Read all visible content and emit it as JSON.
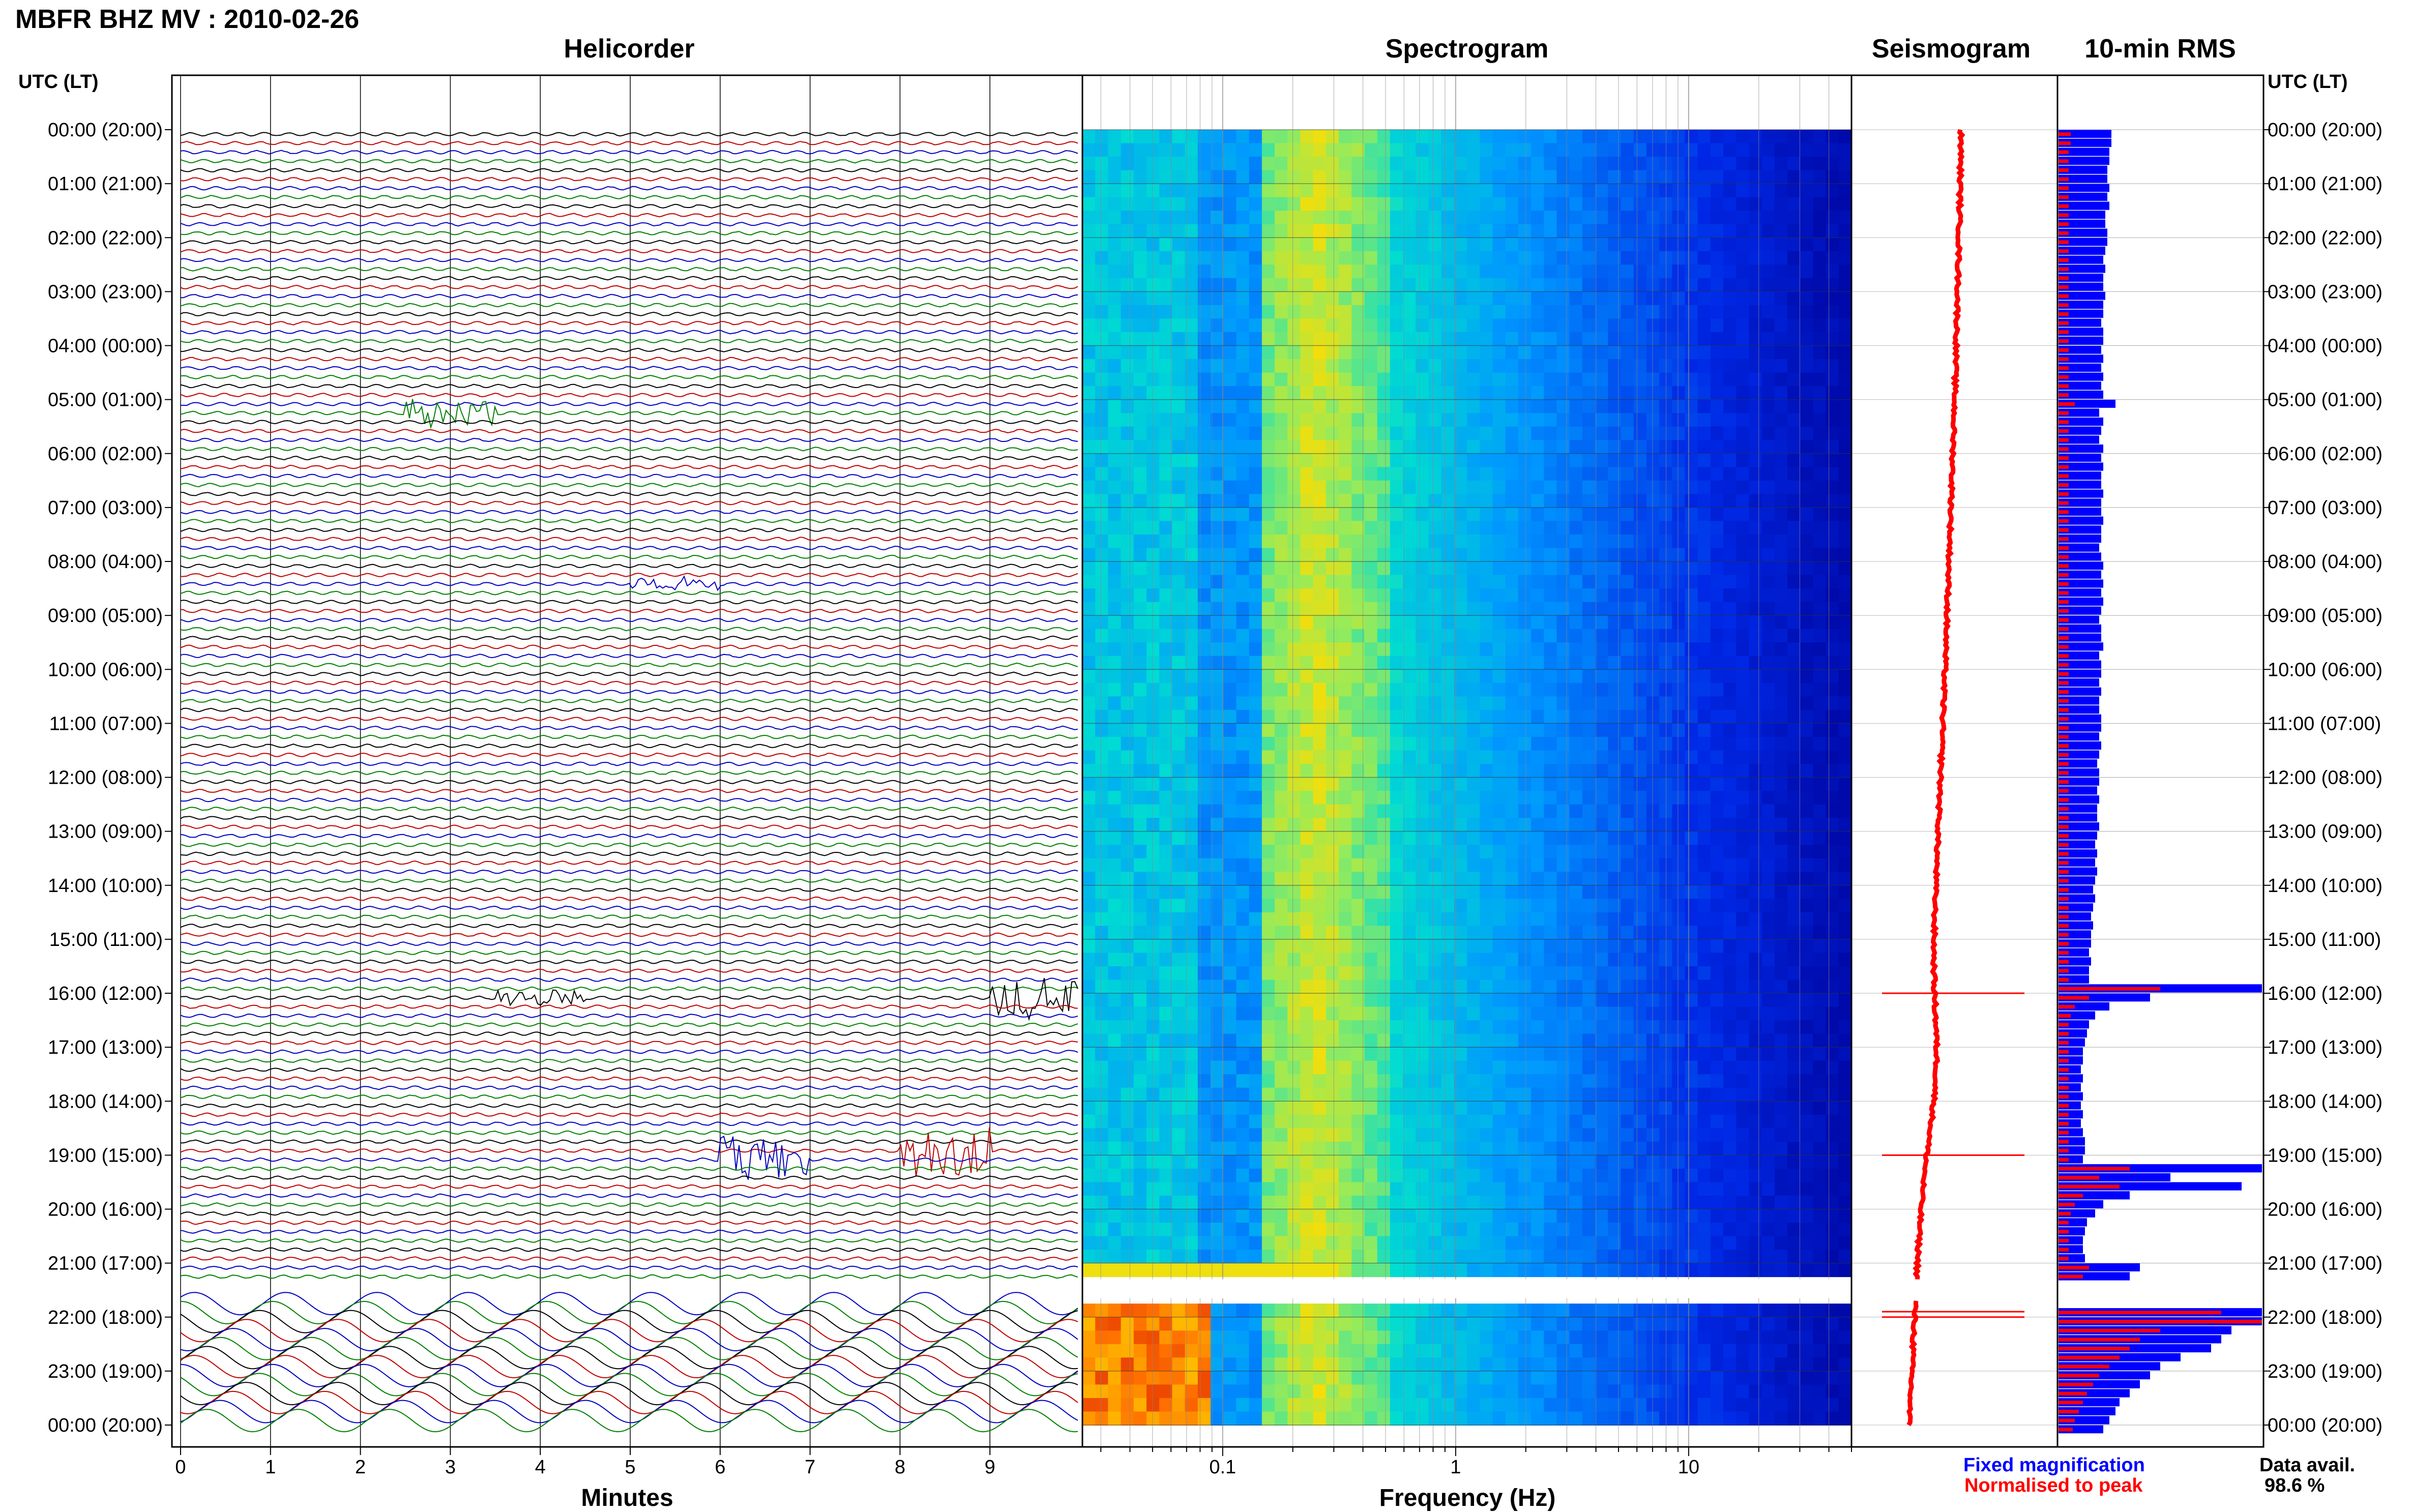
{
  "header": {
    "title": "MBFR BHZ MV : 2010-02-26"
  },
  "panels": {
    "helicorder": "Helicorder",
    "spectrogram": "Spectrogram",
    "seismogram": "Seismogram",
    "rms": "10-min RMS"
  },
  "axes": {
    "left_header": "UTC (LT)",
    "right_header": "UTC (LT)",
    "helicorder_xlabel": "Minutes",
    "spectrogram_xlabel": "Frequency (Hz)",
    "time_ticks": [
      "00:00 (20:00)",
      "01:00 (21:00)",
      "02:00 (22:00)",
      "03:00 (23:00)",
      "04:00 (00:00)",
      "05:00 (01:00)",
      "06:00 (02:00)",
      "07:00 (03:00)",
      "08:00 (04:00)",
      "09:00 (05:00)",
      "10:00 (06:00)",
      "11:00 (07:00)",
      "12:00 (08:00)",
      "13:00 (09:00)",
      "14:00 (10:00)",
      "15:00 (11:00)",
      "16:00 (12:00)",
      "17:00 (13:00)",
      "18:00 (14:00)",
      "19:00 (15:00)",
      "20:00 (16:00)",
      "21:00 (17:00)",
      "22:00 (18:00)",
      "23:00 (19:00)",
      "00:00 (20:00)"
    ],
    "minute_ticks": [
      "0",
      "1",
      "2",
      "3",
      "4",
      "5",
      "6",
      "7",
      "8",
      "9"
    ],
    "freq_ticks": [
      "0.1",
      "1",
      "10"
    ]
  },
  "legend": {
    "fixed": "Fixed magnification",
    "normalised": "Normalised to peak",
    "data_avail_label": "Data avail.",
    "data_avail_value": "98.6 %"
  },
  "colors": {
    "trace_cycle": [
      "#000000",
      "#c00000",
      "#0000c0",
      "#008000"
    ],
    "rms_fixed": "#0000ff",
    "rms_normalised": "#ff0000",
    "seismogram": "#ff0000"
  },
  "chart_data": {
    "type": "heatmap",
    "station": "MBFR BHZ MV",
    "date": "2010-02-26",
    "time_range_utc_hours": [
      0,
      24
    ],
    "helicorder_minutes_range": [
      0,
      10
    ],
    "spectrogram_freq_range_hz": [
      0.025,
      50
    ],
    "spectrogram_freq_scale": "log",
    "data_gap_utc_hours": [
      21.3,
      21.65
    ],
    "rms_10min": {
      "fixed_magnification": [
        0.26,
        0.26,
        0.25,
        0.25,
        0.24,
        0.24,
        0.25,
        0.24,
        0.25,
        0.23,
        0.23,
        0.24,
        0.24,
        0.23,
        0.22,
        0.23,
        0.22,
        0.22,
        0.23,
        0.22,
        0.22,
        0.21,
        0.22,
        0.22,
        0.21,
        0.22,
        0.21,
        0.22,
        0.21,
        0.22,
        0.28,
        0.2,
        0.22,
        0.21,
        0.2,
        0.22,
        0.21,
        0.22,
        0.21,
        0.21,
        0.22,
        0.21,
        0.21,
        0.22,
        0.21,
        0.21,
        0.2,
        0.21,
        0.22,
        0.21,
        0.22,
        0.21,
        0.22,
        0.21,
        0.2,
        0.21,
        0.21,
        0.22,
        0.2,
        0.21,
        0.21,
        0.2,
        0.21,
        0.2,
        0.2,
        0.21,
        0.21,
        0.2,
        0.21,
        0.2,
        0.19,
        0.2,
        0.2,
        0.19,
        0.2,
        0.19,
        0.19,
        0.2,
        0.19,
        0.18,
        0.19,
        0.18,
        0.19,
        0.18,
        0.17,
        0.18,
        0.17,
        0.16,
        0.17,
        0.16,
        0.16,
        0.15,
        0.16,
        0.15,
        0.15,
        1.0,
        0.45,
        0.25,
        0.18,
        0.15,
        0.14,
        0.13,
        0.12,
        0.12,
        0.11,
        0.12,
        0.11,
        0.12,
        0.11,
        0.12,
        0.11,
        0.12,
        0.13,
        0.13,
        0.12,
        1.0,
        0.55,
        0.9,
        0.35,
        0.22,
        0.18,
        0.14,
        0.13,
        0.12,
        0.12,
        0.13,
        0.4,
        0.35,
        0.0,
        0.0,
        0.0,
        1.0,
        1.0,
        0.85,
        0.8,
        0.75,
        0.6,
        0.5,
        0.45,
        0.4,
        0.35,
        0.3,
        0.28,
        0.25,
        0.22
      ],
      "normalised_to_peak": [
        0.06,
        0.06,
        0.05,
        0.05,
        0.05,
        0.05,
        0.05,
        0.05,
        0.05,
        0.05,
        0.05,
        0.05,
        0.05,
        0.05,
        0.05,
        0.05,
        0.05,
        0.05,
        0.05,
        0.05,
        0.05,
        0.05,
        0.05,
        0.05,
        0.05,
        0.05,
        0.05,
        0.05,
        0.05,
        0.05,
        0.08,
        0.05,
        0.05,
        0.05,
        0.05,
        0.05,
        0.05,
        0.05,
        0.05,
        0.05,
        0.05,
        0.05,
        0.05,
        0.05,
        0.05,
        0.05,
        0.05,
        0.05,
        0.05,
        0.05,
        0.05,
        0.05,
        0.05,
        0.05,
        0.05,
        0.05,
        0.05,
        0.05,
        0.05,
        0.05,
        0.05,
        0.05,
        0.05,
        0.05,
        0.05,
        0.05,
        0.05,
        0.05,
        0.05,
        0.05,
        0.05,
        0.05,
        0.05,
        0.05,
        0.05,
        0.05,
        0.05,
        0.05,
        0.05,
        0.05,
        0.05,
        0.05,
        0.05,
        0.05,
        0.05,
        0.05,
        0.05,
        0.05,
        0.05,
        0.05,
        0.05,
        0.05,
        0.05,
        0.05,
        0.05,
        0.5,
        0.15,
        0.08,
        0.06,
        0.05,
        0.05,
        0.05,
        0.05,
        0.05,
        0.05,
        0.05,
        0.05,
        0.05,
        0.05,
        0.05,
        0.05,
        0.05,
        0.05,
        0.05,
        0.05,
        0.35,
        0.2,
        0.3,
        0.12,
        0.08,
        0.06,
        0.05,
        0.05,
        0.05,
        0.05,
        0.05,
        0.15,
        0.12,
        0.0,
        0.0,
        0.0,
        0.8,
        1.0,
        0.5,
        0.4,
        0.35,
        0.3,
        0.25,
        0.2,
        0.17,
        0.14,
        0.12,
        0.1,
        0.08,
        0.07
      ]
    }
  }
}
